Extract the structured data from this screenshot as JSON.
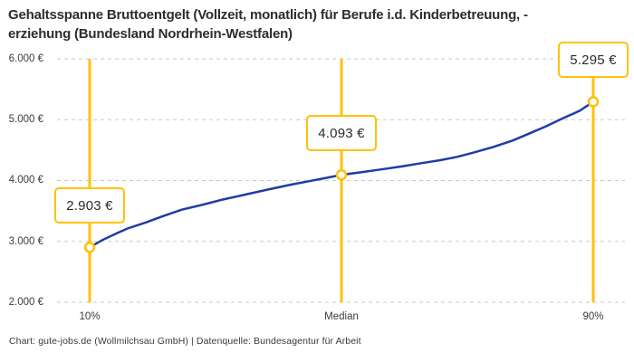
{
  "header": {
    "title_line1": "Gehaltsspanne Bruttoentgelt (Vollzeit, monatlich) für Berufe i.d. Kinderbetreuung, -",
    "title_line2": "erziehung (Bundesland Nordrhein-Westfalen)"
  },
  "footer": {
    "credit": "Chart: gute-jobs.de (Wollmilchsau GmbH) | Datenquelle: Bundesagentur für Arbeit"
  },
  "chart_data": {
    "type": "line",
    "title": "Gehaltsspanne Bruttoentgelt (Vollzeit, monatlich) für Berufe i.d. Kinderbetreuung, -erziehung (Bundesland Nordrhein-Westfalen)",
    "x_tick_labels": [
      "10%",
      "Median",
      "90%"
    ],
    "y_tick_labels": [
      "6.000 €",
      "5.000 €",
      "4.000 €",
      "3.000 €",
      "2.000 €"
    ],
    "y_tick_values": [
      6000,
      5000,
      4000,
      3000,
      2000
    ],
    "ylim": [
      2000,
      6000
    ],
    "grid": true,
    "legend": "none",
    "points": [
      {
        "percentile": "10%",
        "value": 2903,
        "label": "2.903 €"
      },
      {
        "percentile": "Median",
        "value": 4093,
        "label": "4.093 €"
      },
      {
        "percentile": "90%",
        "value": 5295,
        "label": "5.295 €"
      }
    ],
    "colors": {
      "accent": "#FFC107",
      "line": "#1F3CA6",
      "grid": "#C9C9C9"
    }
  }
}
